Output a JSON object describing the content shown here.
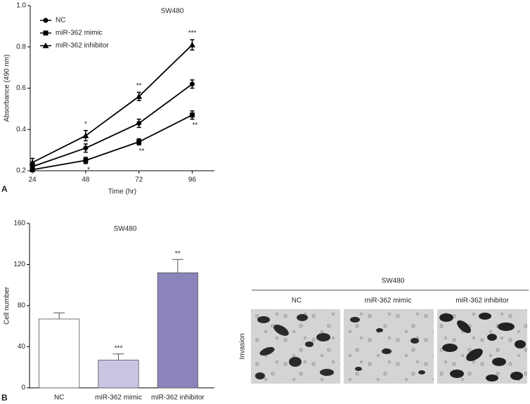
{
  "chart_data": [
    {
      "type": "line",
      "title": "SW480",
      "x_label": "Time (hr)",
      "y_label": "Absorbance (490 nm)",
      "x": [
        24,
        48,
        72,
        96
      ],
      "xlim": [
        23,
        106
      ],
      "xticks": [
        24,
        48,
        72,
        96
      ],
      "ylim": [
        0.2,
        1
      ],
      "yticks": [
        0.2,
        0.4,
        0.6,
        0.8,
        {
          "value": 1,
          "label": "1.0"
        }
      ],
      "legend": "upper left",
      "series": [
        {
          "name": "NC",
          "color": "#000000",
          "marker": "circle",
          "values": [
            0.22,
            0.31,
            0.43,
            0.62
          ],
          "errors": [
            0.02,
            0.02,
            0.02,
            0.02
          ],
          "significance": [
            null,
            null,
            null,
            null
          ]
        },
        {
          "name": "miR-362 mimic",
          "color": "#000000",
          "marker": "square",
          "values": [
            0.205,
            0.25,
            0.34,
            0.47
          ],
          "errors": [
            0.01,
            0.015,
            0.015,
            0.02
          ],
          "significance": [
            null,
            "*",
            "**",
            "**"
          ]
        },
        {
          "name": "miR-362 inhibitor",
          "color": "#000000",
          "marker": "triangle",
          "values": [
            0.24,
            0.37,
            0.56,
            0.81
          ],
          "errors": [
            0.02,
            0.025,
            0.02,
            0.025
          ],
          "significance": [
            null,
            "*",
            "**",
            "***"
          ]
        }
      ]
    },
    {
      "type": "bar",
      "title": "SW480",
      "y_label": "Cell number",
      "categories": [
        "NC",
        "miR-362 mimic",
        "miR-362 inhibitor"
      ],
      "values": [
        67,
        27,
        112
      ],
      "errors": [
        6,
        6,
        13
      ],
      "significance": [
        null,
        "***",
        "**"
      ],
      "colors": [
        "#ffffff",
        "#c8c6e2",
        "#8a84bb"
      ],
      "ylim": [
        0,
        160
      ],
      "yticks": [
        0,
        40,
        80,
        120,
        160
      ]
    }
  ],
  "panel_labels": [
    "A",
    "B"
  ],
  "micrograph": {
    "title": "SW480",
    "columns": [
      "NC",
      "miR-362 mimic",
      "miR-362 inhibitor"
    ],
    "row_label": "Invasion"
  }
}
